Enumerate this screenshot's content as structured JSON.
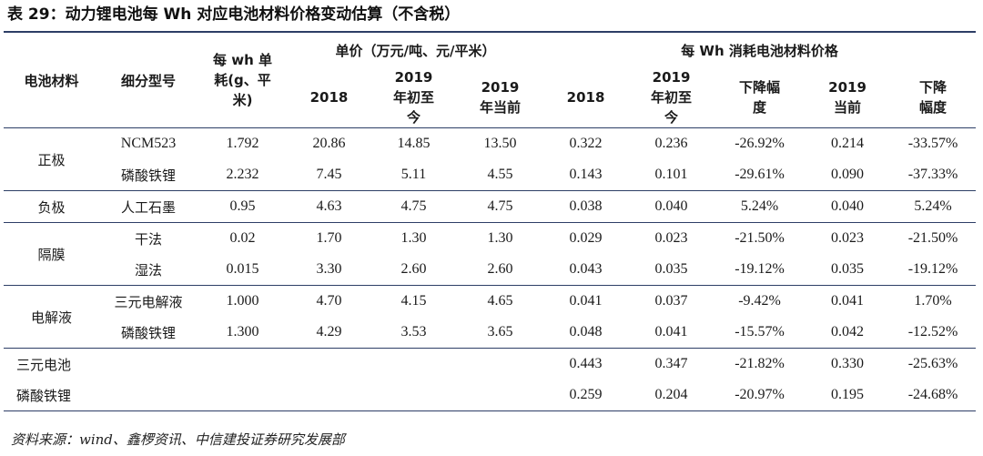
{
  "caption": "表 29：动力锂电池每 Wh 对应电池材料价格变动估算（不含税）",
  "header": {
    "material": "电池材料",
    "model": "细分型号",
    "consumption": "每 wh 单耗(g、平米)",
    "unit_price_group": "单价（万元/吨、元/平米）",
    "wh_cost_group": "每 Wh 消耗电池材料价格",
    "sub": [
      "2018",
      "2019 年初至今",
      "2019 年当前",
      "2018",
      "2019 年初至今",
      "下降幅度",
      "2019 当前",
      "下降幅度"
    ]
  },
  "groups": [
    {
      "name": "正极",
      "rows": [
        {
          "model": "NCM523",
          "cells": [
            "1.792",
            "20.86",
            "14.85",
            "13.50",
            "0.322",
            "0.236",
            "-26.92%",
            "0.214",
            "-33.57%"
          ]
        },
        {
          "model": "磷酸铁锂",
          "cells": [
            "2.232",
            "7.45",
            "5.11",
            "4.55",
            "0.143",
            "0.101",
            "-29.61%",
            "0.090",
            "-37.33%"
          ]
        }
      ]
    },
    {
      "name": "负极",
      "rows": [
        {
          "model": "人工石墨",
          "cells": [
            "0.95",
            "4.63",
            "4.75",
            "4.75",
            "0.038",
            "0.040",
            "5.24%",
            "0.040",
            "5.24%"
          ]
        }
      ]
    },
    {
      "name": "隔膜",
      "rows": [
        {
          "model": "干法",
          "cells": [
            "0.02",
            "1.70",
            "1.30",
            "1.30",
            "0.029",
            "0.023",
            "-21.50%",
            "0.023",
            "-21.50%"
          ]
        },
        {
          "model": "湿法",
          "cells": [
            "0.015",
            "3.30",
            "2.60",
            "2.60",
            "0.043",
            "0.035",
            "-19.12%",
            "0.035",
            "-19.12%"
          ]
        }
      ]
    },
    {
      "name": "电解液",
      "rows": [
        {
          "model": "三元电解液",
          "cells": [
            "1.000",
            "4.70",
            "4.15",
            "4.65",
            "0.041",
            "0.037",
            "-9.42%",
            "0.041",
            "1.70%"
          ]
        },
        {
          "model": "磷酸铁锂",
          "cells": [
            "1.300",
            "4.29",
            "3.53",
            "3.65",
            "0.048",
            "0.041",
            "-15.57%",
            "0.042",
            "-12.52%"
          ]
        }
      ]
    }
  ],
  "totals": [
    {
      "name": "三元电池",
      "cells": [
        "0.443",
        "0.347",
        "-21.82%",
        "0.330",
        "-25.63%"
      ]
    },
    {
      "name": "磷酸铁锂",
      "cells": [
        "0.259",
        "0.204",
        "-20.97%",
        "0.195",
        "-24.68%"
      ]
    }
  ],
  "source": "资料来源：wind、鑫椤资讯、中信建投证券研究发展部"
}
